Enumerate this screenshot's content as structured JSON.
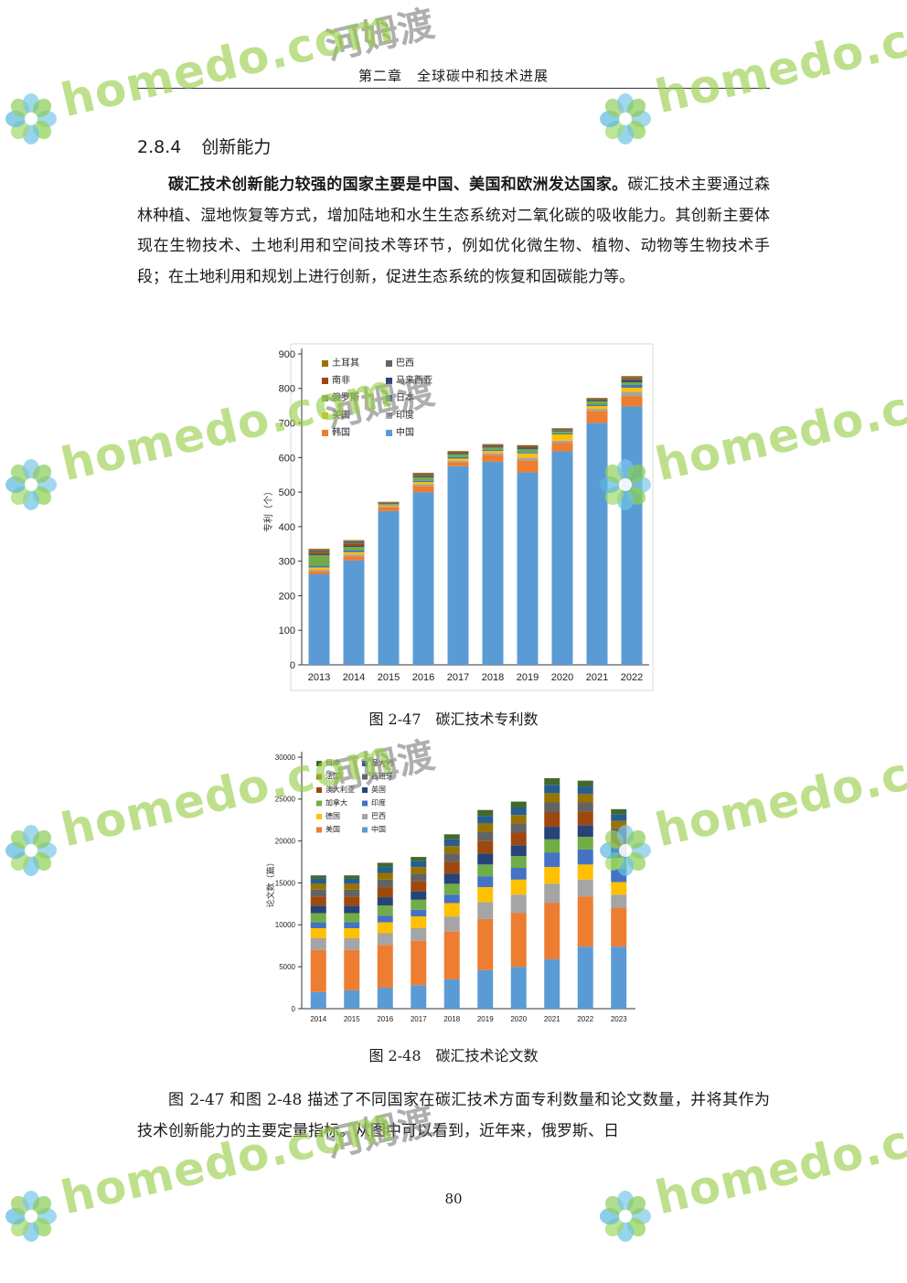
{
  "header": {
    "title": "第二章　全球碳中和技术进展"
  },
  "section": {
    "number": "2.8.4",
    "title": "创新能力"
  },
  "para1": {
    "lead": "碳汇技术创新能力较强的国家主要是中国、美国和欧洲发达国家。",
    "text": "碳汇技术主要通过森林种植、湿地恢复等方式，增加陆地和水生生态系统对二氧化碳的吸收能力。其创新主要体现在生物技术、土地利用和空间技术等环节，例如优化微生物、植物、动物等生物技术手段；在土地利用和规划上进行创新，促进生态系统的恢复和固碳能力等。"
  },
  "figure1": {
    "caption": "图 2-47　碳汇技术专利数"
  },
  "figure2": {
    "caption": "图 2-48　碳汇技术论文数"
  },
  "para2": {
    "text": "图 2-47 和图 2-48 描述了不同国家在碳汇技术方面专利数量和论文数量，并将其作为技术创新能力的主要定量指标。从图中可以看到，近年来，俄罗斯、日"
  },
  "page_number": "80",
  "watermark": {
    "brand": "homedo.com",
    "cn": "河姆渡"
  },
  "chart_data": [
    {
      "type": "bar",
      "stacked": true,
      "ylabel": "专利（个）",
      "ylim": [
        0,
        900
      ],
      "yticks": [
        0,
        100,
        200,
        300,
        400,
        500,
        600,
        700,
        800,
        900
      ],
      "categories": [
        "2013",
        "2014",
        "2015",
        "2016",
        "2017",
        "2018",
        "2019",
        "2020",
        "2021",
        "2022"
      ],
      "legend_position": "top-left",
      "legend_order": [
        "土耳其",
        "巴西",
        "南非",
        "马来西亚",
        "俄罗斯",
        "日本",
        "美国",
        "印度",
        "韩国",
        "中国"
      ],
      "series": [
        {
          "name": "中国",
          "color": "#5b9bd5",
          "values": [
            262,
            302,
            445,
            500,
            575,
            588,
            557,
            618,
            700,
            748
          ]
        },
        {
          "name": "韩国",
          "color": "#ed7d31",
          "values": [
            10,
            12,
            12,
            18,
            12,
            20,
            35,
            25,
            35,
            30
          ]
        },
        {
          "name": "印度",
          "color": "#a5a5a5",
          "values": [
            4,
            5,
            2,
            5,
            4,
            5,
            8,
            6,
            6,
            12
          ]
        },
        {
          "name": "美国",
          "color": "#ffc000",
          "values": [
            6,
            7,
            3,
            6,
            6,
            6,
            12,
            18,
            8,
            12
          ]
        },
        {
          "name": "日本",
          "color": "#4472c4",
          "values": [
            5,
            5,
            2,
            4,
            4,
            4,
            4,
            3,
            4,
            8
          ]
        },
        {
          "name": "俄罗斯",
          "color": "#70ad47",
          "values": [
            30,
            10,
            2,
            10,
            8,
            6,
            8,
            6,
            10,
            8
          ]
        },
        {
          "name": "马来西亚",
          "color": "#264478",
          "values": [
            3,
            3,
            1,
            3,
            2,
            2,
            3,
            2,
            2,
            5
          ]
        },
        {
          "name": "南非",
          "color": "#9e480e",
          "values": [
            5,
            6,
            2,
            4,
            3,
            3,
            3,
            2,
            3,
            5
          ]
        },
        {
          "name": "巴西",
          "color": "#636363",
          "values": [
            8,
            8,
            2,
            4,
            3,
            3,
            4,
            3,
            3,
            5
          ]
        },
        {
          "name": "土耳其",
          "color": "#997300",
          "values": [
            3,
            3,
            1,
            2,
            2,
            2,
            2,
            2,
            2,
            3
          ]
        }
      ]
    },
    {
      "type": "bar",
      "stacked": true,
      "ylabel": "论文数（篇）",
      "ylim": [
        0,
        30000
      ],
      "yticks": [
        0,
        5000,
        10000,
        15000,
        20000,
        25000,
        30000
      ],
      "categories": [
        "2014",
        "2015",
        "2016",
        "2017",
        "2018",
        "2019",
        "2020",
        "2021",
        "2022",
        "2023"
      ],
      "legend_position": "top-left",
      "legend_order": [
        "日本",
        "意大利",
        "法国",
        "西班牙",
        "澳大利亚",
        "英国",
        "加拿大",
        "印度",
        "德国",
        "巴西",
        "美国",
        "中国"
      ],
      "series": [
        {
          "name": "中国",
          "color": "#5b9bd5",
          "values": [
            2000,
            2200,
            2500,
            2800,
            3500,
            4600,
            5000,
            5900,
            7400,
            7400
          ]
        },
        {
          "name": "美国",
          "color": "#ed7d31",
          "values": [
            5000,
            4800,
            5100,
            5300,
            5700,
            6100,
            6400,
            6700,
            6000,
            4600
          ]
        },
        {
          "name": "巴西",
          "color": "#a5a5a5",
          "values": [
            1400,
            1400,
            1400,
            1500,
            1800,
            2000,
            2200,
            2300,
            2000,
            1600
          ]
        },
        {
          "name": "德国",
          "color": "#ffc000",
          "values": [
            1200,
            1200,
            1300,
            1400,
            1600,
            1800,
            1800,
            2000,
            1800,
            1500
          ]
        },
        {
          "name": "印度",
          "color": "#4472c4",
          "values": [
            700,
            700,
            800,
            800,
            1000,
            1300,
            1400,
            1700,
            1800,
            1600
          ]
        },
        {
          "name": "加拿大",
          "color": "#70ad47",
          "values": [
            1100,
            1100,
            1200,
            1200,
            1300,
            1400,
            1400,
            1600,
            1500,
            1300
          ]
        },
        {
          "name": "英国",
          "color": "#264478",
          "values": [
            900,
            900,
            1000,
            1000,
            1200,
            1300,
            1300,
            1500,
            1400,
            1200
          ]
        },
        {
          "name": "澳大利亚",
          "color": "#9e480e",
          "values": [
            1100,
            1100,
            1200,
            1200,
            1400,
            1500,
            1500,
            1700,
            1600,
            1300
          ]
        },
        {
          "name": "西班牙",
          "color": "#636363",
          "values": [
            800,
            800,
            900,
            900,
            1000,
            1100,
            1100,
            1200,
            1100,
            1000
          ]
        },
        {
          "name": "法国",
          "color": "#997300",
          "values": [
            700,
            700,
            800,
            800,
            900,
            1000,
            1000,
            1100,
            1000,
            900
          ]
        },
        {
          "name": "意大利",
          "color": "#255e91",
          "values": [
            600,
            600,
            700,
            700,
            800,
            900,
            900,
            1000,
            900,
            800
          ]
        },
        {
          "name": "日本",
          "color": "#43682b",
          "values": [
            400,
            400,
            500,
            500,
            600,
            700,
            700,
            800,
            700,
            600
          ]
        }
      ]
    }
  ]
}
